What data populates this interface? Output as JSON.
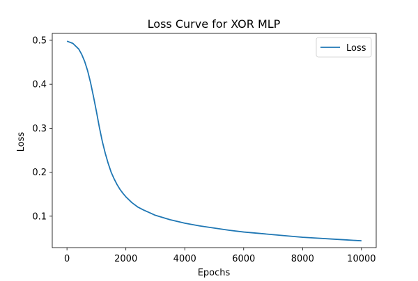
{
  "chart_data": {
    "type": "line",
    "title": "Loss Curve for XOR MLP",
    "xlabel": "Epochs",
    "ylabel": "Loss",
    "xlim": [
      -500,
      10500
    ],
    "ylim": [
      0.0285,
      0.5157
    ],
    "x_ticks": [
      0,
      2000,
      4000,
      6000,
      8000,
      10000
    ],
    "y_ticks": [
      0.1,
      0.2,
      0.3,
      0.4,
      0.5
    ],
    "grid": false,
    "legend_position": "top-right",
    "series": [
      {
        "name": "Loss",
        "color": "#1f77b4",
        "x": [
          0,
          200,
          400,
          500,
          600,
          700,
          800,
          900,
          1000,
          1100,
          1200,
          1300,
          1400,
          1500,
          1600,
          1700,
          1800,
          1900,
          2000,
          2200,
          2400,
          2600,
          2800,
          3000,
          3500,
          4000,
          4500,
          5000,
          5500,
          6000,
          6500,
          7000,
          7500,
          8000,
          8500,
          9000,
          9500,
          10000
        ],
        "y": [
          0.498,
          0.493,
          0.48,
          0.468,
          0.452,
          0.431,
          0.404,
          0.372,
          0.338,
          0.302,
          0.27,
          0.243,
          0.22,
          0.2,
          0.185,
          0.172,
          0.161,
          0.152,
          0.144,
          0.131,
          0.121,
          0.114,
          0.108,
          0.102,
          0.092,
          0.084,
          0.078,
          0.073,
          0.068,
          0.064,
          0.061,
          0.058,
          0.055,
          0.052,
          0.05,
          0.048,
          0.046,
          0.044
        ]
      }
    ]
  }
}
